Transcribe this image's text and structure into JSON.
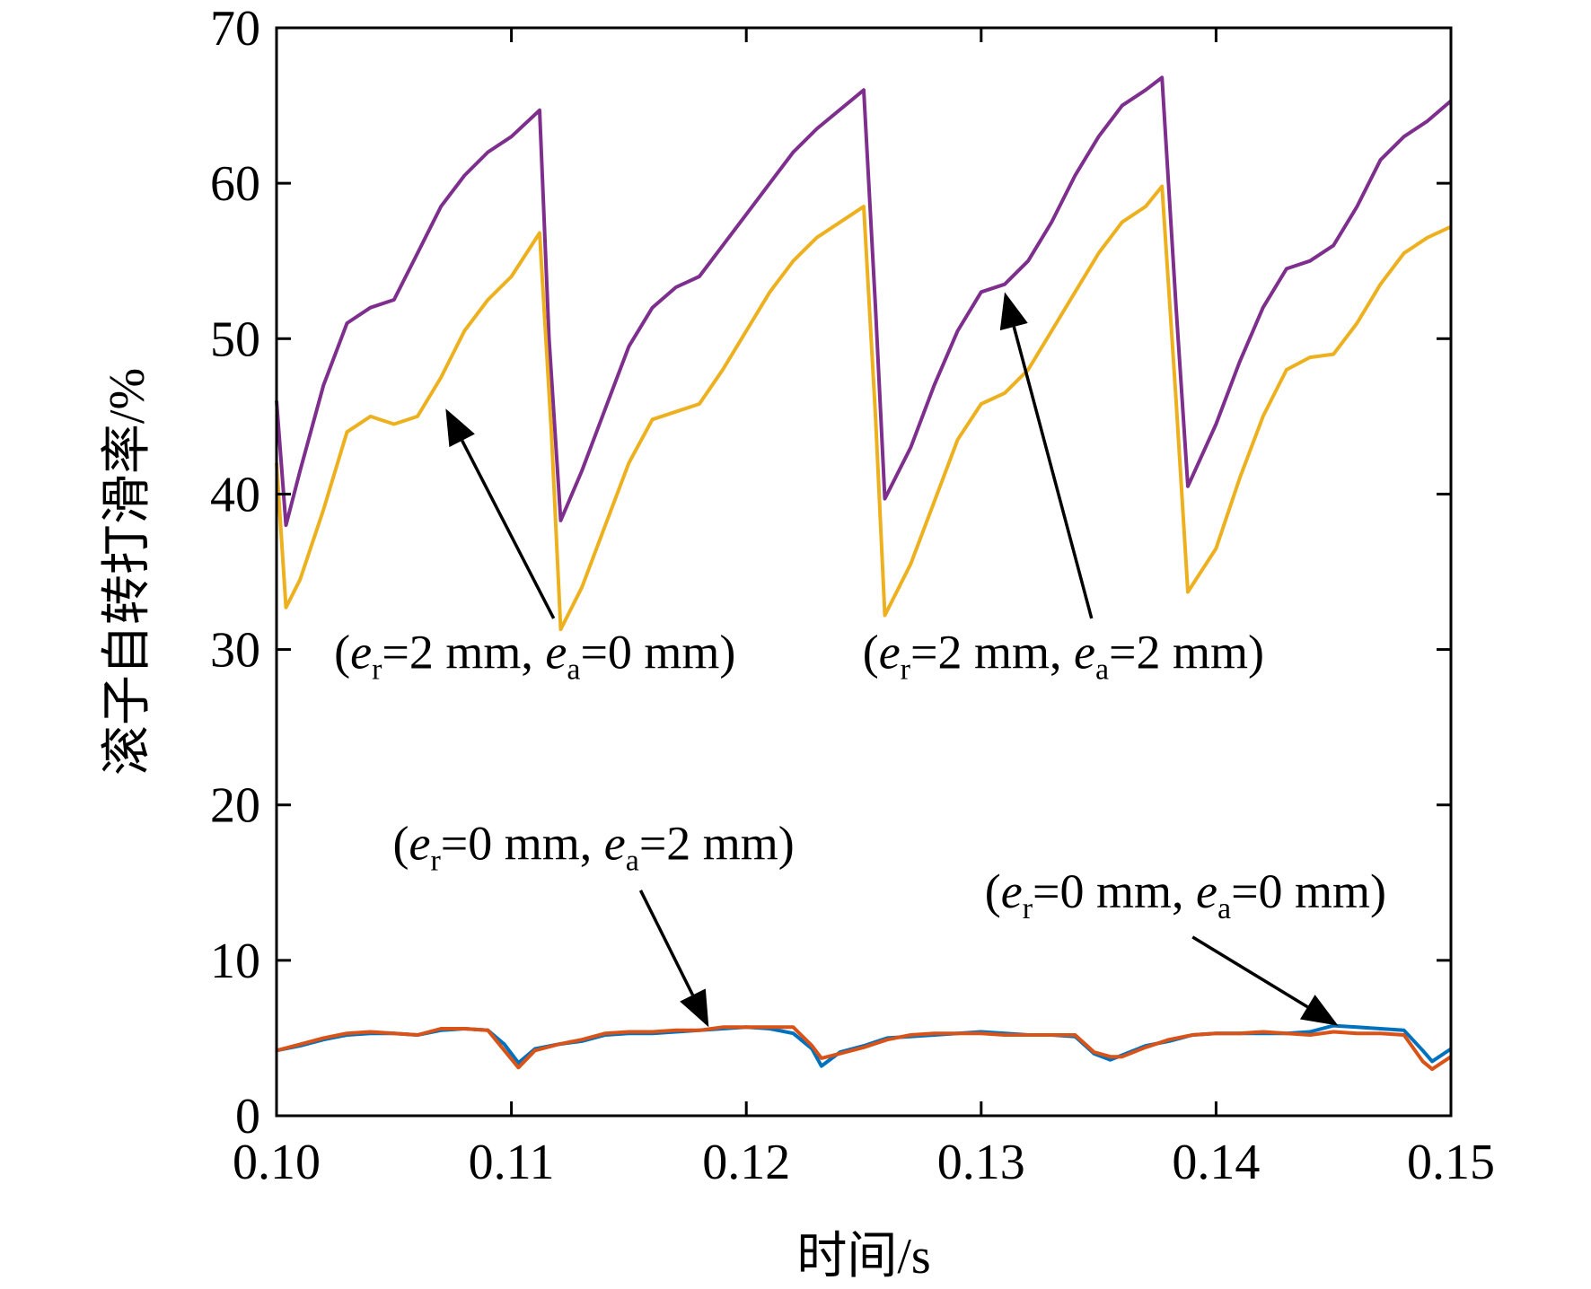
{
  "chart_data": {
    "type": "line",
    "xlabel": "时间/s",
    "ylabel": "滚子自转打滑率/%",
    "xlim": [
      0.1,
      0.15
    ],
    "ylim": [
      0,
      70
    ],
    "xticks": [
      0.1,
      0.11,
      0.12,
      0.13,
      0.14,
      0.15
    ],
    "xtick_labels": [
      "0.10",
      "0.11",
      "0.12",
      "0.13",
      "0.14",
      "0.15"
    ],
    "yticks": [
      0,
      10,
      20,
      30,
      40,
      50,
      60,
      70
    ],
    "ytick_labels": [
      "0",
      "10",
      "20",
      "30",
      "40",
      "50",
      "60",
      "70"
    ],
    "grid": false,
    "series": [
      {
        "color": "#7E2F8E",
        "points": [
          [
            0.1,
            46.0
          ],
          [
            0.1004,
            38.0
          ],
          [
            0.101,
            41.5
          ],
          [
            0.102,
            47.0
          ],
          [
            0.103,
            51.0
          ],
          [
            0.104,
            52.0
          ],
          [
            0.105,
            52.5
          ],
          [
            0.106,
            55.5
          ],
          [
            0.107,
            58.5
          ],
          [
            0.108,
            60.5
          ],
          [
            0.109,
            62.0
          ],
          [
            0.11,
            63.0
          ],
          [
            0.1112,
            64.7
          ],
          [
            0.1116,
            50.0
          ],
          [
            0.1121,
            38.3
          ],
          [
            0.113,
            41.5
          ],
          [
            0.114,
            45.5
          ],
          [
            0.115,
            49.5
          ],
          [
            0.116,
            52.0
          ],
          [
            0.117,
            53.3
          ],
          [
            0.118,
            54.0
          ],
          [
            0.119,
            56.0
          ],
          [
            0.12,
            58.0
          ],
          [
            0.121,
            60.0
          ],
          [
            0.122,
            62.0
          ],
          [
            0.123,
            63.5
          ],
          [
            0.125,
            66.0
          ],
          [
            0.1255,
            52.0
          ],
          [
            0.1259,
            39.7
          ],
          [
            0.127,
            43.0
          ],
          [
            0.128,
            47.0
          ],
          [
            0.129,
            50.5
          ],
          [
            0.13,
            53.0
          ],
          [
            0.131,
            53.5
          ],
          [
            0.132,
            55.0
          ],
          [
            0.133,
            57.5
          ],
          [
            0.134,
            60.5
          ],
          [
            0.135,
            63.0
          ],
          [
            0.136,
            65.0
          ],
          [
            0.137,
            66.0
          ],
          [
            0.1377,
            66.8
          ],
          [
            0.1383,
            52.0
          ],
          [
            0.1388,
            40.5
          ],
          [
            0.14,
            44.5
          ],
          [
            0.141,
            48.5
          ],
          [
            0.142,
            52.0
          ],
          [
            0.143,
            54.5
          ],
          [
            0.144,
            55.0
          ],
          [
            0.145,
            56.0
          ],
          [
            0.146,
            58.5
          ],
          [
            0.147,
            61.5
          ],
          [
            0.148,
            63.0
          ],
          [
            0.149,
            64.0
          ],
          [
            0.15,
            65.3
          ]
        ]
      },
      {
        "color": "#EDB120",
        "points": [
          [
            0.1,
            42.0
          ],
          [
            0.1004,
            32.7
          ],
          [
            0.101,
            34.5
          ],
          [
            0.102,
            39.0
          ],
          [
            0.103,
            44.0
          ],
          [
            0.104,
            45.0
          ],
          [
            0.105,
            44.5
          ],
          [
            0.106,
            45.0
          ],
          [
            0.107,
            47.5
          ],
          [
            0.108,
            50.5
          ],
          [
            0.109,
            52.5
          ],
          [
            0.11,
            54.0
          ],
          [
            0.1112,
            56.8
          ],
          [
            0.1117,
            44.0
          ],
          [
            0.1121,
            31.3
          ],
          [
            0.113,
            34.0
          ],
          [
            0.114,
            38.0
          ],
          [
            0.115,
            42.0
          ],
          [
            0.116,
            44.8
          ],
          [
            0.117,
            45.3
          ],
          [
            0.118,
            45.8
          ],
          [
            0.119,
            48.0
          ],
          [
            0.12,
            50.5
          ],
          [
            0.121,
            53.0
          ],
          [
            0.122,
            55.0
          ],
          [
            0.123,
            56.5
          ],
          [
            0.125,
            58.5
          ],
          [
            0.1255,
            45.0
          ],
          [
            0.1259,
            32.2
          ],
          [
            0.127,
            35.5
          ],
          [
            0.128,
            39.5
          ],
          [
            0.129,
            43.5
          ],
          [
            0.13,
            45.8
          ],
          [
            0.131,
            46.5
          ],
          [
            0.132,
            48.0
          ],
          [
            0.133,
            50.5
          ],
          [
            0.134,
            53.0
          ],
          [
            0.135,
            55.5
          ],
          [
            0.136,
            57.5
          ],
          [
            0.137,
            58.5
          ],
          [
            0.1377,
            59.8
          ],
          [
            0.1383,
            46.0
          ],
          [
            0.1388,
            33.7
          ],
          [
            0.14,
            36.5
          ],
          [
            0.141,
            41.0
          ],
          [
            0.142,
            45.0
          ],
          [
            0.143,
            48.0
          ],
          [
            0.144,
            48.8
          ],
          [
            0.145,
            49.0
          ],
          [
            0.146,
            51.0
          ],
          [
            0.147,
            53.5
          ],
          [
            0.148,
            55.5
          ],
          [
            0.149,
            56.5
          ],
          [
            0.15,
            57.2
          ]
        ]
      },
      {
        "color": "#0072BD",
        "points": [
          [
            0.1,
            4.2
          ],
          [
            0.101,
            4.5
          ],
          [
            0.102,
            4.9
          ],
          [
            0.103,
            5.2
          ],
          [
            0.104,
            5.3
          ],
          [
            0.105,
            5.3
          ],
          [
            0.106,
            5.2
          ],
          [
            0.107,
            5.5
          ],
          [
            0.108,
            5.6
          ],
          [
            0.109,
            5.5
          ],
          [
            0.1097,
            4.6
          ],
          [
            0.1103,
            3.4
          ],
          [
            0.111,
            4.3
          ],
          [
            0.112,
            4.6
          ],
          [
            0.113,
            4.8
          ],
          [
            0.114,
            5.2
          ],
          [
            0.115,
            5.3
          ],
          [
            0.116,
            5.3
          ],
          [
            0.117,
            5.4
          ],
          [
            0.118,
            5.5
          ],
          [
            0.119,
            5.6
          ],
          [
            0.12,
            5.7
          ],
          [
            0.121,
            5.6
          ],
          [
            0.122,
            5.3
          ],
          [
            0.1228,
            4.3
          ],
          [
            0.1232,
            3.2
          ],
          [
            0.124,
            4.1
          ],
          [
            0.125,
            4.5
          ],
          [
            0.126,
            5.0
          ],
          [
            0.127,
            5.1
          ],
          [
            0.128,
            5.2
          ],
          [
            0.129,
            5.3
          ],
          [
            0.13,
            5.4
          ],
          [
            0.131,
            5.3
          ],
          [
            0.132,
            5.2
          ],
          [
            0.133,
            5.2
          ],
          [
            0.134,
            5.1
          ],
          [
            0.1348,
            4.0
          ],
          [
            0.1355,
            3.6
          ],
          [
            0.136,
            3.9
          ],
          [
            0.137,
            4.5
          ],
          [
            0.138,
            4.8
          ],
          [
            0.139,
            5.2
          ],
          [
            0.14,
            5.3
          ],
          [
            0.141,
            5.3
          ],
          [
            0.142,
            5.3
          ],
          [
            0.143,
            5.3
          ],
          [
            0.144,
            5.4
          ],
          [
            0.145,
            5.8
          ],
          [
            0.146,
            5.7
          ],
          [
            0.147,
            5.6
          ],
          [
            0.148,
            5.5
          ],
          [
            0.1488,
            4.2
          ],
          [
            0.1492,
            3.5
          ],
          [
            0.15,
            4.3
          ]
        ]
      },
      {
        "color": "#D95319",
        "points": [
          [
            0.1,
            4.2
          ],
          [
            0.101,
            4.6
          ],
          [
            0.102,
            5.0
          ],
          [
            0.103,
            5.3
          ],
          [
            0.104,
            5.4
          ],
          [
            0.105,
            5.3
          ],
          [
            0.106,
            5.2
          ],
          [
            0.107,
            5.6
          ],
          [
            0.108,
            5.6
          ],
          [
            0.109,
            5.5
          ],
          [
            0.1097,
            4.2
          ],
          [
            0.1103,
            3.1
          ],
          [
            0.111,
            4.2
          ],
          [
            0.112,
            4.6
          ],
          [
            0.113,
            4.9
          ],
          [
            0.114,
            5.3
          ],
          [
            0.115,
            5.4
          ],
          [
            0.116,
            5.4
          ],
          [
            0.117,
            5.5
          ],
          [
            0.118,
            5.5
          ],
          [
            0.119,
            5.7
          ],
          [
            0.12,
            5.7
          ],
          [
            0.121,
            5.7
          ],
          [
            0.122,
            5.7
          ],
          [
            0.1228,
            4.5
          ],
          [
            0.1232,
            3.7
          ],
          [
            0.124,
            4.0
          ],
          [
            0.125,
            4.4
          ],
          [
            0.126,
            4.9
          ],
          [
            0.127,
            5.2
          ],
          [
            0.128,
            5.3
          ],
          [
            0.129,
            5.3
          ],
          [
            0.13,
            5.3
          ],
          [
            0.131,
            5.2
          ],
          [
            0.132,
            5.2
          ],
          [
            0.133,
            5.2
          ],
          [
            0.134,
            5.2
          ],
          [
            0.1348,
            4.1
          ],
          [
            0.1355,
            3.8
          ],
          [
            0.136,
            3.8
          ],
          [
            0.137,
            4.4
          ],
          [
            0.138,
            4.9
          ],
          [
            0.139,
            5.2
          ],
          [
            0.14,
            5.3
          ],
          [
            0.141,
            5.3
          ],
          [
            0.142,
            5.4
          ],
          [
            0.143,
            5.3
          ],
          [
            0.144,
            5.2
          ],
          [
            0.145,
            5.4
          ],
          [
            0.146,
            5.3
          ],
          [
            0.147,
            5.3
          ],
          [
            0.148,
            5.2
          ],
          [
            0.1488,
            3.5
          ],
          [
            0.1492,
            3.0
          ],
          [
            0.15,
            3.8
          ]
        ]
      }
    ],
    "annotations": [
      {
        "e_r": "=2 mm, ",
        "e_a": "=0 mm)",
        "x": 0.111,
        "y": 28.8,
        "anchor": "middle",
        "arrow_from": [
          0.1118,
          32.0
        ],
        "arrow_to": [
          0.1072,
          45.5
        ]
      },
      {
        "e_r": "=2 mm, ",
        "e_a": "=2 mm)",
        "x": 0.1335,
        "y": 28.8,
        "anchor": "middle",
        "arrow_from": [
          0.1347,
          32.0
        ],
        "arrow_to": [
          0.131,
          53.0
        ]
      },
      {
        "e_r": "=0 mm, ",
        "e_a": "=2 mm)",
        "x": 0.1135,
        "y": 16.5,
        "anchor": "middle",
        "arrow_from": [
          0.1155,
          14.5
        ],
        "arrow_to": [
          0.1184,
          5.7
        ]
      },
      {
        "e_r": "=0 mm, ",
        "e_a": "=0 mm)",
        "x": 0.1387,
        "y": 13.4,
        "anchor": "middle",
        "arrow_from": [
          0.139,
          11.5
        ],
        "arrow_to": [
          0.1452,
          5.8
        ]
      }
    ]
  }
}
